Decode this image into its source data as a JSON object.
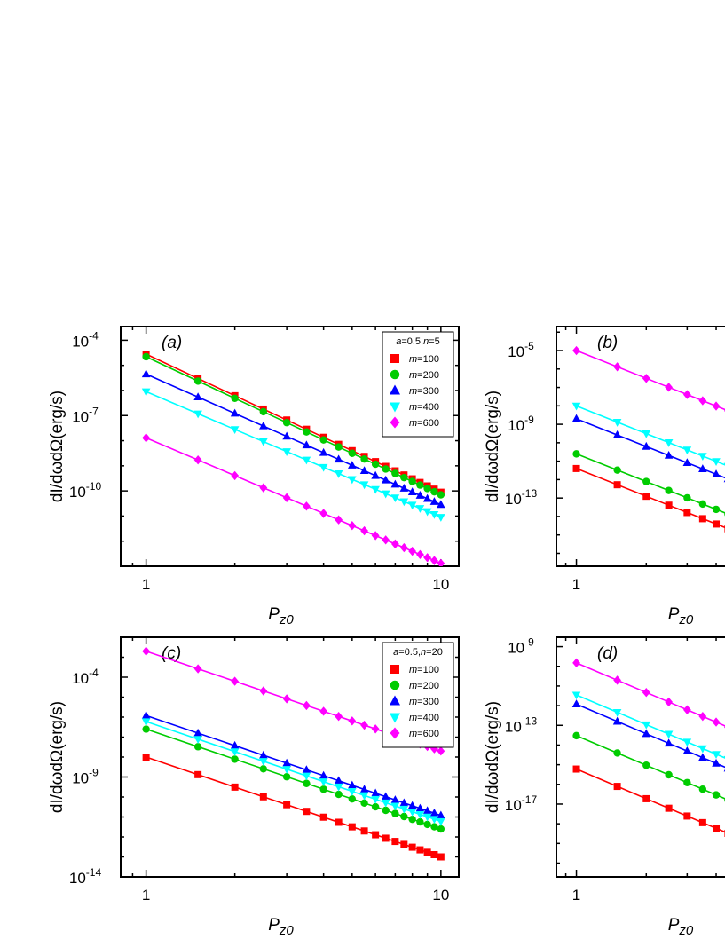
{
  "colors": {
    "m100": "#ff0000",
    "m200": "#00cc00",
    "m300": "#0000ff",
    "m400": "#00ffff",
    "m600": "#ff00ff"
  },
  "chart_data": [
    {
      "id": "a",
      "type": "scatter",
      "panel_label": "(a)",
      "xlabel": "P",
      "xlabel_sub": "z0",
      "ylabel": "dI/dωdΩ(erg/s)",
      "xscale": "log",
      "yscale": "log",
      "xlim": [
        0.82,
        11.5
      ],
      "ylim": [
        1e-13,
        0.00035
      ],
      "xticks": [
        {
          "v": 1,
          "label": "1"
        },
        {
          "v": 10,
          "label": "10"
        }
      ],
      "yticks": [
        {
          "v": 0.0001,
          "base": "10",
          "exp": "-4"
        },
        {
          "v": 1e-07,
          "base": "10",
          "exp": "-7"
        },
        {
          "v": 1e-10,
          "base": "10",
          "exp": "-10"
        }
      ],
      "legend": {
        "title_a": "a",
        "title_rest": "=0.5,",
        "title_n": "n",
        "title_n_val": "=5",
        "position": "top-right"
      },
      "series": [
        {
          "key": "m100",
          "m": "100",
          "marker": "square",
          "y1": 2.8e-05,
          "slope": -5.5
        },
        {
          "key": "m200",
          "m": "200",
          "marker": "circle",
          "y1": 2.2e-05,
          "slope": -5.5
        },
        {
          "key": "m300",
          "m": "300",
          "marker": "triangle-up",
          "y1": 4.5e-06,
          "slope": -5.2
        },
        {
          "key": "m400",
          "m": "400",
          "marker": "triangle-down",
          "y1": 9e-07,
          "slope": -5.0
        },
        {
          "key": "m600",
          "m": "600",
          "marker": "diamond",
          "y1": 1.3e-08,
          "slope": -5.0
        }
      ]
    },
    {
      "id": "b",
      "type": "scatter",
      "panel_label": "(b)",
      "xlabel": "P",
      "xlabel_sub": "z0",
      "ylabel": "dI/dωdΩ(erg/s)",
      "xscale": "log",
      "yscale": "log",
      "xlim": [
        0.82,
        11.5
      ],
      "ylim": [
        2e-17,
        0.0002
      ],
      "xticks": [
        {
          "v": 1,
          "label": "1"
        }
      ],
      "yticks": [
        {
          "v": 1e-05,
          "base": "10",
          "exp": "-5"
        },
        {
          "v": 1e-09,
          "base": "10",
          "exp": "-9"
        },
        {
          "v": 1e-13,
          "base": "10",
          "exp": "-13"
        }
      ],
      "series": [
        {
          "key": "m100",
          "m": "100",
          "marker": "square",
          "y1": 4e-12,
          "slope": -5.0
        },
        {
          "key": "m200",
          "m": "200",
          "marker": "circle",
          "y1": 2.5e-11,
          "slope": -5.0
        },
        {
          "key": "m300",
          "m": "300",
          "marker": "triangle-up",
          "y1": 2e-09,
          "slope": -5.0
        },
        {
          "key": "m400",
          "m": "400",
          "marker": "triangle-down",
          "y1": 1e-08,
          "slope": -5.0
        },
        {
          "key": "m600",
          "m": "600",
          "marker": "diamond",
          "y1": 1e-05,
          "slope": -5.0
        }
      ]
    },
    {
      "id": "c",
      "type": "scatter",
      "panel_label": "(c)",
      "xlabel": "P",
      "xlabel_sub": "z0",
      "ylabel": "dI/dωdΩ(erg/s)",
      "xscale": "log",
      "yscale": "log",
      "xlim": [
        0.82,
        11.5
      ],
      "ylim": [
        1e-14,
        0.01
      ],
      "xticks": [
        {
          "v": 1,
          "label": "1"
        },
        {
          "v": 10,
          "label": "10"
        }
      ],
      "yticks": [
        {
          "v": 0.0001,
          "base": "10",
          "exp": "-4"
        },
        {
          "v": 1e-09,
          "base": "10",
          "exp": "-9"
        },
        {
          "v": 1e-14,
          "base": "10",
          "exp": "-14"
        }
      ],
      "legend": {
        "title_a": "a",
        "title_rest": "=0.5,",
        "title_n": "n",
        "title_n_val": "=20",
        "position": "top-right"
      },
      "series": [
        {
          "key": "m100",
          "m": "100",
          "marker": "square",
          "y1": 1e-08,
          "slope": -5.0
        },
        {
          "key": "m200",
          "m": "200",
          "marker": "circle",
          "y1": 2.5e-07,
          "slope": -5.0
        },
        {
          "key": "m300",
          "m": "300",
          "marker": "triangle-up",
          "y1": 1.2e-06,
          "slope": -5.0
        },
        {
          "key": "m400",
          "m": "400",
          "marker": "triangle-down",
          "y1": 6e-07,
          "slope": -5.0
        },
        {
          "key": "m600",
          "m": "600",
          "marker": "diamond",
          "y1": 0.002,
          "slope": -5.0
        }
      ]
    },
    {
      "id": "d",
      "type": "scatter",
      "panel_label": "(d)",
      "xlabel": "P",
      "xlabel_sub": "z0",
      "ylabel": "dI/dωdΩ(erg/s)",
      "xscale": "log",
      "yscale": "log",
      "xlim": [
        0.82,
        11.5
      ],
      "ylim": [
        2e-21,
        3e-09
      ],
      "xticks": [
        {
          "v": 1,
          "label": "1"
        }
      ],
      "yticks": [
        {
          "v": 1e-09,
          "base": "10",
          "exp": "-9"
        },
        {
          "v": 1e-13,
          "base": "10",
          "exp": "-13"
        },
        {
          "v": 1e-17,
          "base": "10",
          "exp": "-17"
        }
      ],
      "series": [
        {
          "key": "m100",
          "m": "100",
          "marker": "square",
          "y1": 6e-16,
          "slope": -5.0
        },
        {
          "key": "m200",
          "m": "200",
          "marker": "circle",
          "y1": 3e-14,
          "slope": -5.0
        },
        {
          "key": "m300",
          "m": "300",
          "marker": "triangle-up",
          "y1": 1.2e-12,
          "slope": -5.0
        },
        {
          "key": "m400",
          "m": "400",
          "marker": "triangle-down",
          "y1": 3.5e-12,
          "slope": -5.0
        },
        {
          "key": "m600",
          "m": "600",
          "marker": "diamond",
          "y1": 1.5e-10,
          "slope": -5.0
        }
      ]
    }
  ],
  "x_points": [
    1,
    1.5,
    2,
    2.5,
    3,
    3.5,
    4,
    4.5,
    5,
    5.5,
    6,
    6.5,
    7,
    7.5,
    8,
    8.5,
    9,
    9.5,
    10
  ]
}
